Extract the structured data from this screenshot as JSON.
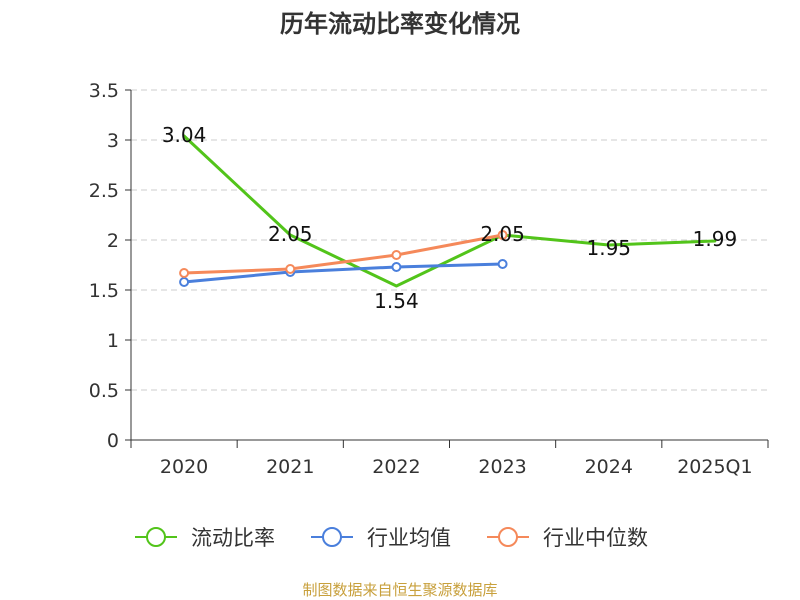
{
  "chart_data": {
    "type": "line",
    "title": "历年流动比率变化情况",
    "categories": [
      "2020",
      "2021",
      "2022",
      "2023",
      "2024",
      "2025Q1"
    ],
    "ylim": [
      0,
      3.5
    ],
    "yticks": [
      "0",
      "0.5",
      "1",
      "1.5",
      "2",
      "2.5",
      "3",
      "3.5"
    ],
    "grid": true,
    "legend_position": "bottom",
    "series": [
      {
        "name": "流动比率",
        "color": "#52c41a",
        "values": [
          3.04,
          2.05,
          1.54,
          2.05,
          1.95,
          1.99
        ],
        "labels": [
          "3.04",
          "2.05",
          "1.54",
          "2.05",
          "1.95",
          "1.99"
        ],
        "markers": false
      },
      {
        "name": "行业均值",
        "color": "#4a7fdc",
        "values": [
          1.58,
          1.68,
          1.73,
          1.76,
          null,
          null
        ],
        "markers": true
      },
      {
        "name": "行业中位数",
        "color": "#f5895a",
        "values": [
          1.67,
          1.71,
          1.85,
          2.05,
          null,
          null
        ],
        "markers": true
      }
    ]
  },
  "footer": {
    "source": "制图数据来自恒生聚源数据库"
  }
}
